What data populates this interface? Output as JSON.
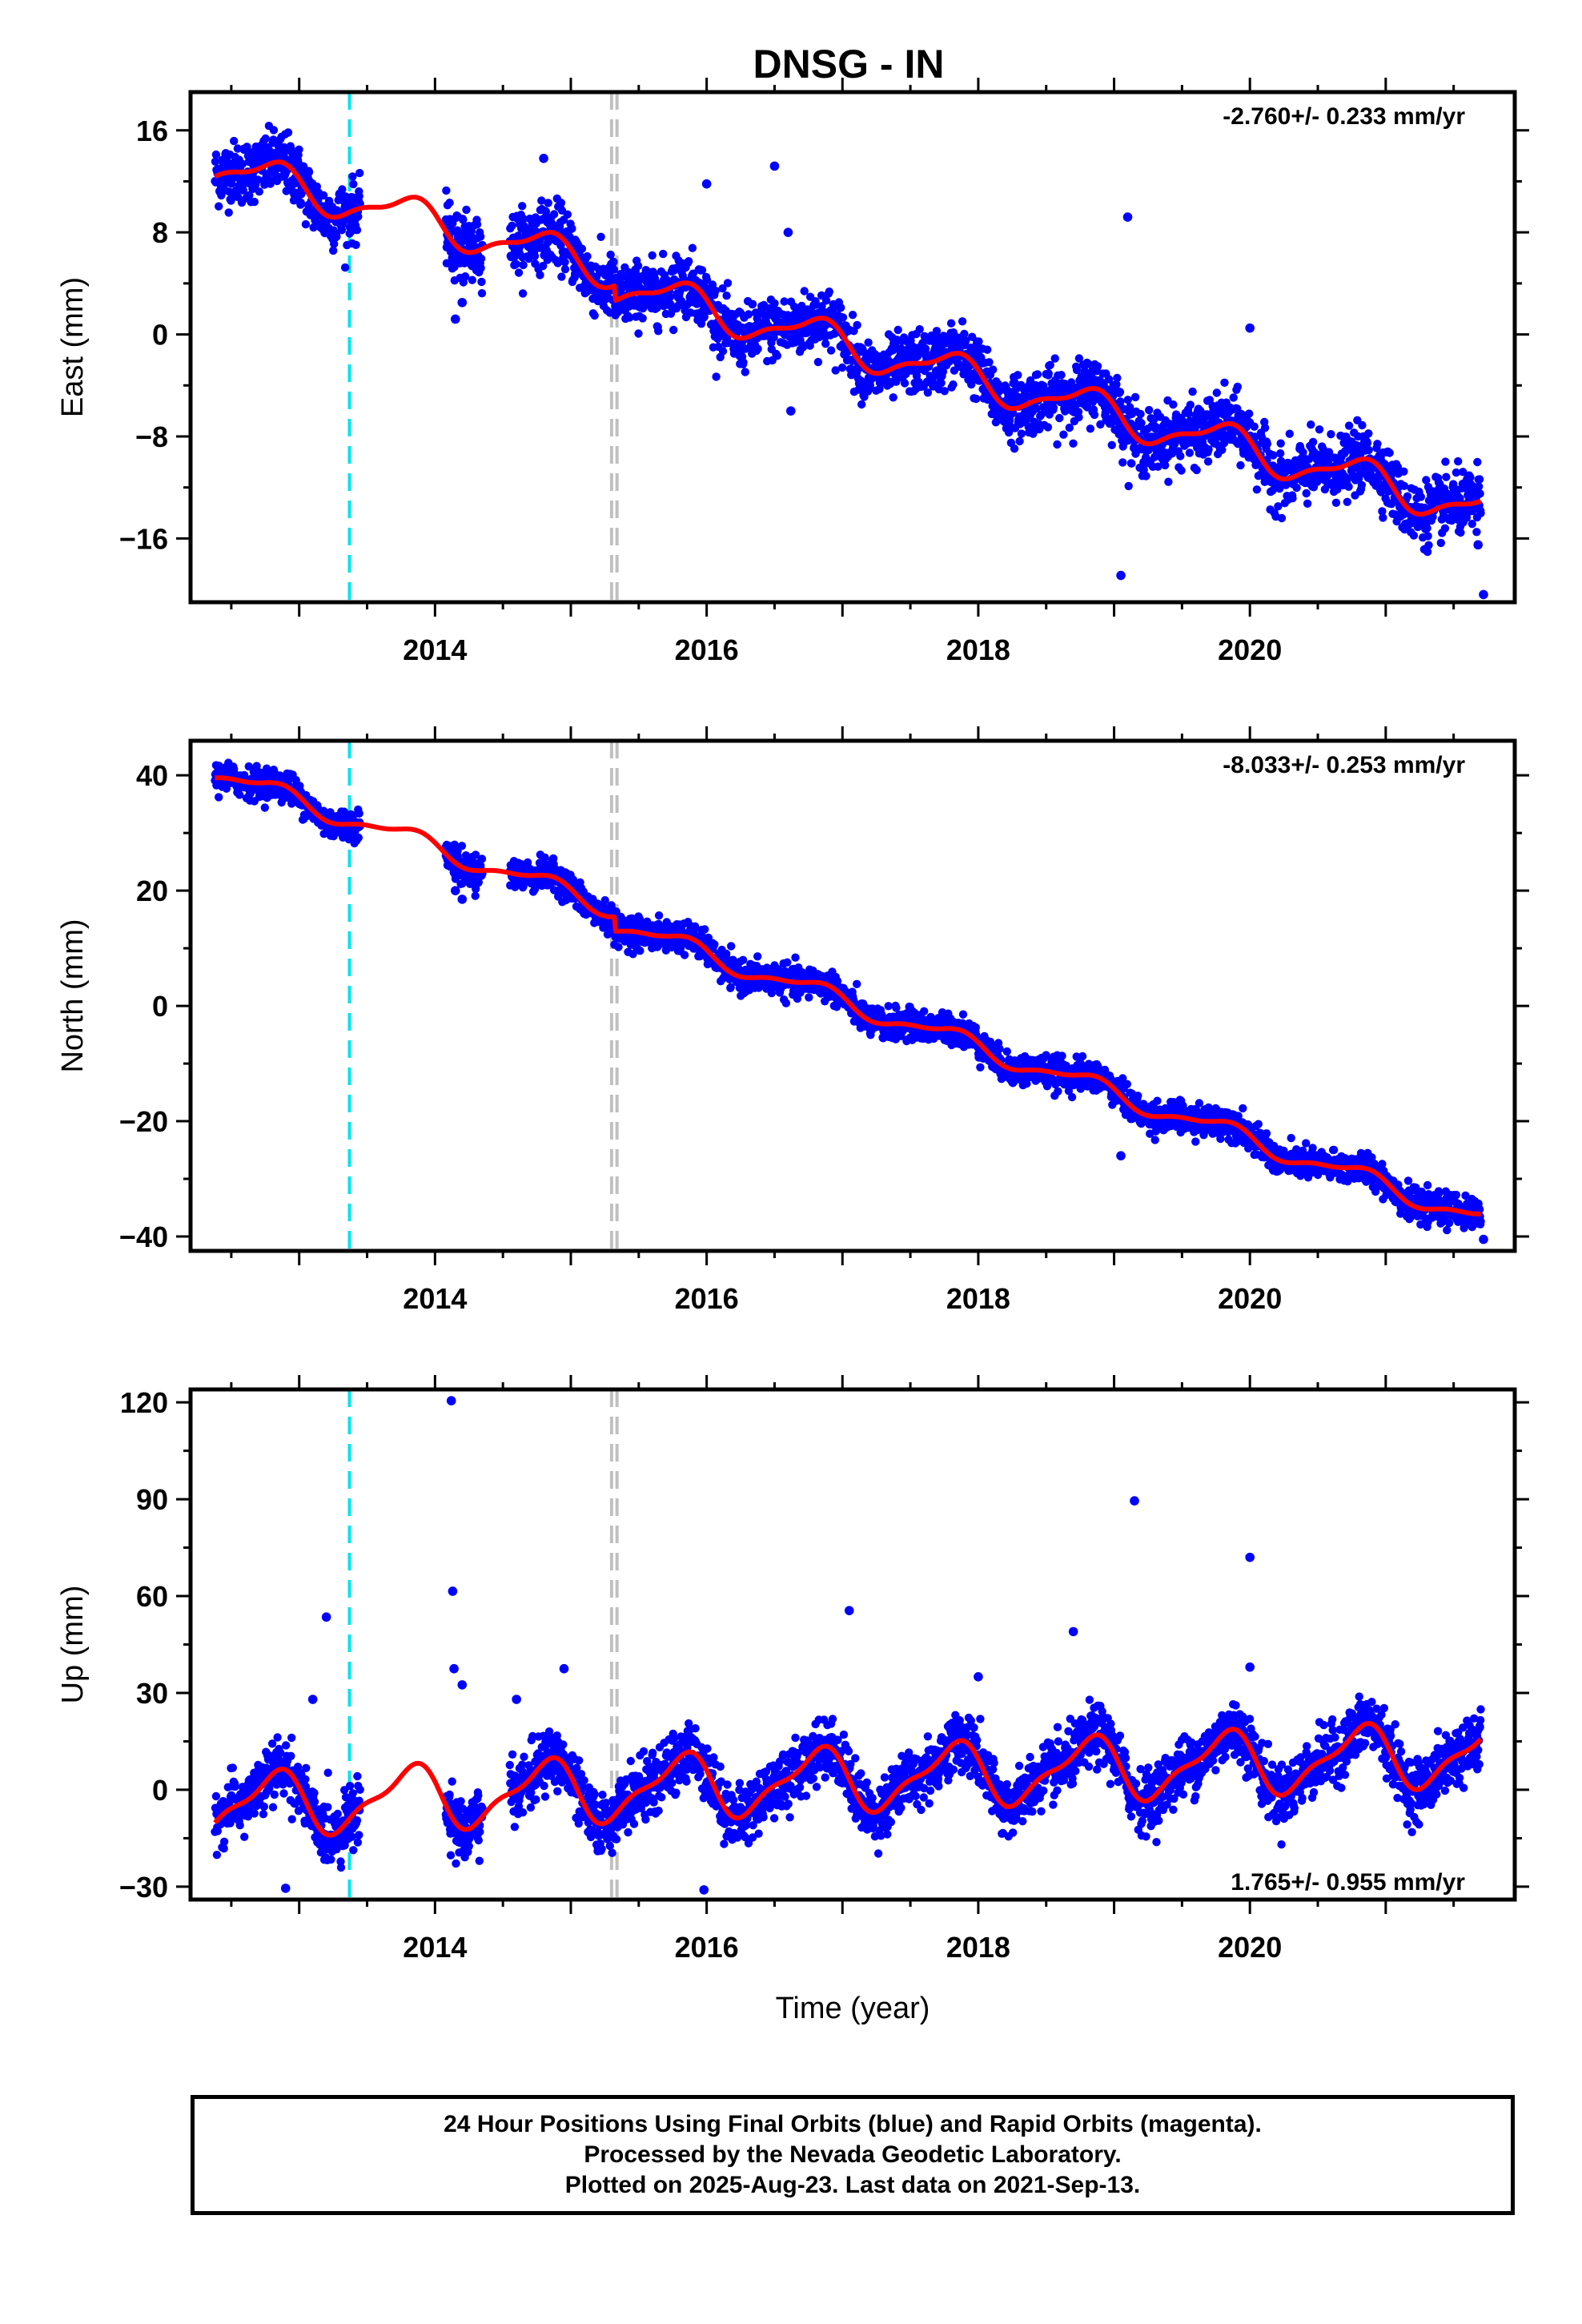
{
  "title": "DNSG - IN",
  "caption": {
    "line1": "24 Hour Positions Using Final Orbits (blue) and Rapid Orbits (magenta).",
    "line2": "Processed by the Nevada Geodetic Laboratory.",
    "line3": "Plotted on 2025-Aug-23. Last data on 2021-Sep-13."
  },
  "colors": {
    "points": "#0000ff",
    "model": "#ff0000",
    "equipment_change": "#00e5ee",
    "event": "#c0c0c0"
  },
  "chart_data": [
    {
      "type": "scatter",
      "component": "east",
      "ylabel": "East (mm)",
      "xlabel": "",
      "rate": "-2.760+/- 0.233 mm/yr",
      "xlim": [
        2012.2,
        2021.95
      ],
      "ylim": [
        -21,
        19
      ],
      "yticks": [
        16,
        8,
        0,
        -8,
        -16
      ],
      "xticks": [
        2014,
        2016,
        2018,
        2020
      ],
      "data_start": 2012.38,
      "data_end": 2021.7,
      "gaps": [
        [
          2013.45,
          2014.08
        ],
        [
          2014.35,
          2014.55
        ]
      ],
      "trend_start_mm": 13.2,
      "trend_mm_per_yr": -2.76,
      "annual_mm": 1.4,
      "scatter_sd_mm": 1.2,
      "model_offsets": [
        [
          2015.32,
          -1.2
        ]
      ],
      "outliers": [
        [
          2014.15,
          1.2
        ],
        [
          2014.2,
          2.5
        ],
        [
          2014.8,
          13.8
        ],
        [
          2015.3,
          5.5
        ],
        [
          2016.0,
          11.8
        ],
        [
          2016.5,
          13.2
        ],
        [
          2016.6,
          8.0
        ],
        [
          2016.62,
          -6.0
        ],
        [
          2019.05,
          -18.9
        ],
        [
          2019.1,
          9.2
        ],
        [
          2020.0,
          0.5
        ],
        [
          2021.72,
          -20.4
        ],
        [
          2021.68,
          -16.5
        ]
      ],
      "reference_lines": [
        {
          "kind": "equipment_change",
          "x": 2013.37
        },
        {
          "kind": "event",
          "x": 2015.3
        },
        {
          "kind": "event",
          "x": 2015.34
        }
      ]
    },
    {
      "type": "scatter",
      "component": "north",
      "ylabel": "North (mm)",
      "xlabel": "",
      "rate": "-8.033+/- 0.253 mm/yr",
      "xlim": [
        2012.2,
        2021.95
      ],
      "ylim": [
        -42.5,
        46
      ],
      "yticks": [
        40,
        20,
        0,
        -20,
        -40
      ],
      "xticks": [
        2014,
        2016,
        2018,
        2020
      ],
      "data_start": 2012.38,
      "data_end": 2021.7,
      "gaps": [
        [
          2013.45,
          2014.08
        ],
        [
          2014.35,
          2014.55
        ]
      ],
      "trend_start_mm": 40.5,
      "trend_mm_per_yr": -8.033,
      "annual_mm": 1.6,
      "scatter_sd_mm": 1.3,
      "model_offsets": [
        [
          2015.32,
          -2.5
        ]
      ],
      "outliers": [
        [
          2014.15,
          20.0
        ],
        [
          2014.2,
          18.5
        ],
        [
          2019.05,
          -26.0
        ],
        [
          2018.4,
          -9.5
        ],
        [
          2017.3,
          -5.5
        ],
        [
          2021.72,
          -40.5
        ]
      ],
      "reference_lines": [
        {
          "kind": "equipment_change",
          "x": 2013.37
        },
        {
          "kind": "event",
          "x": 2015.3
        },
        {
          "kind": "event",
          "x": 2015.34
        }
      ]
    },
    {
      "type": "scatter",
      "component": "up",
      "ylabel": "Up (mm)",
      "xlabel": "Time (year)",
      "rate": "1.765+/- 0.955 mm/yr",
      "xlim": [
        2012.2,
        2021.95
      ],
      "ylim": [
        -34,
        124
      ],
      "yticks": [
        120,
        90,
        60,
        30,
        0,
        -30
      ],
      "xticks": [
        2014,
        2016,
        2018,
        2020
      ],
      "data_start": 2012.38,
      "data_end": 2021.7,
      "gaps": [
        [
          2013.45,
          2014.08
        ],
        [
          2014.35,
          2014.55
        ]
      ],
      "trend_start_mm": -5.0,
      "trend_mm_per_yr": 1.765,
      "annual_mm": 9.0,
      "scatter_sd_mm": 4.5,
      "model_offsets": [],
      "outliers": [
        [
          2014.12,
          120.5
        ],
        [
          2014.13,
          61.5
        ],
        [
          2014.14,
          37.5
        ],
        [
          2014.2,
          32.5
        ],
        [
          2013.2,
          53.5
        ],
        [
          2013.1,
          28.0
        ],
        [
          2014.6,
          28.0
        ],
        [
          2014.95,
          37.5
        ],
        [
          2017.05,
          55.5
        ],
        [
          2018.0,
          35.0
        ],
        [
          2018.7,
          49.0
        ],
        [
          2019.15,
          89.5
        ],
        [
          2020.0,
          72.0
        ],
        [
          2020.0,
          38.0
        ],
        [
          2015.98,
          -31.0
        ],
        [
          2012.9,
          -30.5
        ]
      ],
      "reference_lines": [
        {
          "kind": "equipment_change",
          "x": 2013.37
        },
        {
          "kind": "event",
          "x": 2015.3
        },
        {
          "kind": "event",
          "x": 2015.34
        }
      ]
    }
  ]
}
